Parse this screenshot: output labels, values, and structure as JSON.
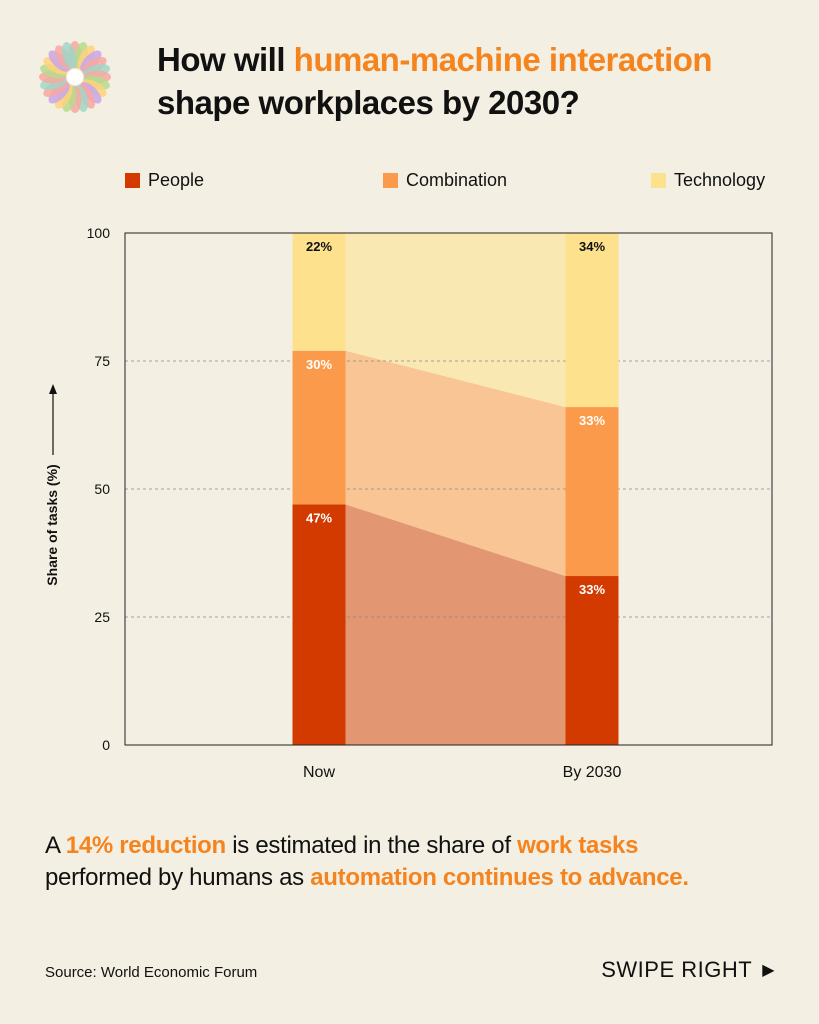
{
  "title": {
    "part1": "How will ",
    "highlight": "human-machine interaction",
    "part2": "shape workplaces by 2030?"
  },
  "chart_data": {
    "type": "bar",
    "stacked": true,
    "categories": [
      "Now",
      "By 2030"
    ],
    "series": [
      {
        "name": "People",
        "values": [
          47,
          33
        ],
        "labels": [
          "47%",
          "33%"
        ],
        "color": "#d23a00"
      },
      {
        "name": "Combination",
        "values": [
          30,
          33
        ],
        "labels": [
          "30%",
          "33%"
        ],
        "color": "#fb9a4a"
      },
      {
        "name": "Technology",
        "values": [
          22,
          34
        ],
        "labels": [
          "22%",
          "34%"
        ],
        "color": "#fde18c"
      }
    ],
    "ribbon_colors": [
      "#e29672",
      "#f9c594",
      "#fae8b2"
    ],
    "xlabel": "",
    "ylabel": "Share of tasks (%)",
    "ylim": [
      0,
      100
    ],
    "yticks": [
      0,
      25,
      50,
      75,
      100
    ],
    "grid": true,
    "legend": "top"
  },
  "footer": {
    "t1": "A ",
    "b1": "14% reduction",
    "t2": " is estimated in the share of ",
    "b2": "work tasks",
    "t3": " performed by humans as ",
    "b3": "automation continues to advance."
  },
  "source": "Source: World Economic Forum",
  "swipe": {
    "label": "SWIPE RIGHT",
    "icon": "play-triangle-icon"
  },
  "logo": {
    "icon": "flower-logo-icon"
  }
}
